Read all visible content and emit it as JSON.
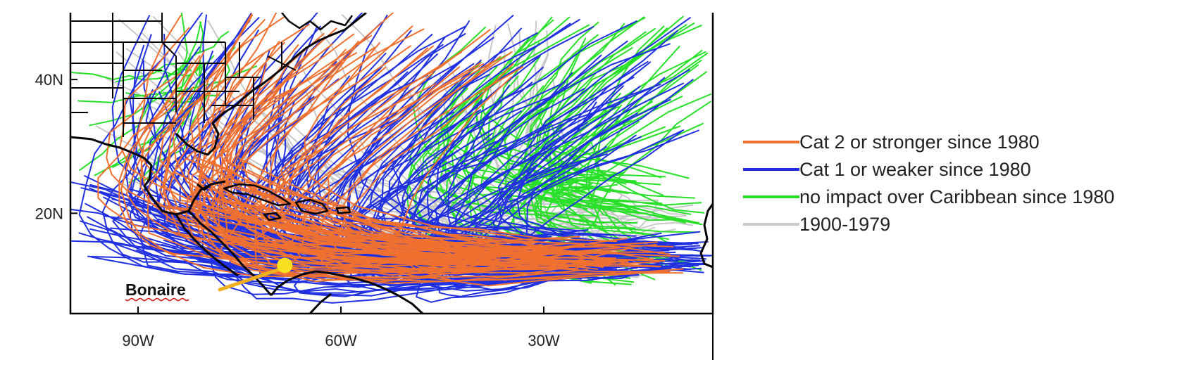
{
  "map": {
    "lat_ticks": [
      {
        "value": 40,
        "label": "40N"
      },
      {
        "value": 20,
        "label": "20N"
      }
    ],
    "lon_ticks": [
      {
        "value": -90,
        "label": "90W"
      },
      {
        "value": -60,
        "label": "60W"
      },
      {
        "value": -30,
        "label": "30W"
      }
    ],
    "lon_range": [
      -100,
      -5
    ],
    "lat_range": [
      5,
      50
    ]
  },
  "legend": {
    "items": [
      {
        "label": "Cat 2 or stronger since 1980",
        "color": "#f07030"
      },
      {
        "label": "Cat 1 or weaker since 1980",
        "color": "#2030e0"
      },
      {
        "label": "no impact over Caribbean since 1980",
        "color": "#28e028"
      },
      {
        "label": "1900-1979",
        "color": "#c8c8c8"
      }
    ]
  },
  "annotation": {
    "label": "Bonaire",
    "lon": -68.3,
    "lat": 12.2,
    "marker_color": "#f8e020",
    "arrow_color": "#f0b020"
  }
}
